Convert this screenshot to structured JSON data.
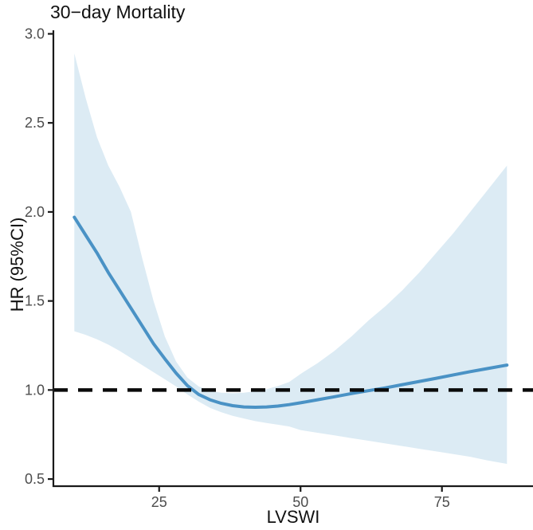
{
  "page": {
    "background": "#ffffff"
  },
  "chart_data": {
    "type": "line",
    "title": "30−day Mortality",
    "xlabel": "LVSWI",
    "ylabel": "HR (95%CI)",
    "grid": false,
    "legend": false,
    "xlim": [
      6.3,
      91.1
    ],
    "ylim": [
      0.46,
      3.02
    ],
    "x_ticks": {
      "values": [
        25,
        50,
        75
      ],
      "labels": [
        "25",
        "50",
        "75"
      ]
    },
    "y_ticks": {
      "values": [
        0.5,
        1.0,
        1.5,
        2.0,
        2.5,
        3.0
      ],
      "labels": [
        "0.5",
        "1.0",
        "1.5",
        "2.0",
        "2.5",
        "3.0"
      ]
    },
    "reference_line": {
      "y": 1.0,
      "style": "dashed",
      "color": "#0a0a0a"
    },
    "x": [
      10,
      12,
      14,
      16,
      18,
      20,
      22,
      24,
      26,
      28,
      30,
      32,
      34,
      36,
      38,
      40,
      42,
      44,
      46,
      48,
      50,
      53,
      56,
      59,
      62,
      65,
      68,
      71,
      74,
      77,
      80,
      83,
      86.5
    ],
    "series": [
      {
        "name": "HR",
        "role": "estimate",
        "color": "#4a92c5",
        "values": [
          1.97,
          1.87,
          1.77,
          1.66,
          1.56,
          1.46,
          1.36,
          1.26,
          1.175,
          1.095,
          1.025,
          0.975,
          0.945,
          0.925,
          0.912,
          0.905,
          0.903,
          0.905,
          0.91,
          0.918,
          0.928,
          0.945,
          0.962,
          0.98,
          0.996,
          1.012,
          1.03,
          1.048,
          1.066,
          1.085,
          1.103,
          1.12,
          1.14
        ]
      },
      {
        "name": "upper 95% CI",
        "role": "ci-upper",
        "color": "#dcebf4",
        "values": [
          2.89,
          2.64,
          2.42,
          2.26,
          2.14,
          2.0,
          1.74,
          1.5,
          1.3,
          1.16,
          1.07,
          1.02,
          0.995,
          0.985,
          0.982,
          0.985,
          0.993,
          1.005,
          1.022,
          1.045,
          1.09,
          1.15,
          1.22,
          1.3,
          1.39,
          1.47,
          1.56,
          1.66,
          1.77,
          1.88,
          2.0,
          2.12,
          2.26
        ]
      },
      {
        "name": "lower 95% CI",
        "role": "ci-lower",
        "color": "#dcebf4",
        "values": [
          1.33,
          1.31,
          1.285,
          1.255,
          1.22,
          1.18,
          1.14,
          1.1,
          1.06,
          1.02,
          0.975,
          0.935,
          0.9,
          0.875,
          0.855,
          0.84,
          0.825,
          0.815,
          0.805,
          0.795,
          0.775,
          0.76,
          0.745,
          0.73,
          0.715,
          0.7,
          0.685,
          0.67,
          0.655,
          0.64,
          0.625,
          0.605,
          0.585
        ]
      }
    ]
  },
  "style": {
    "line_color": "#4a92c5",
    "band_color": "#dcebf4",
    "axis_color": "#1a1a1a",
    "tick_label_color": "#4d4d4d",
    "dash_color": "#0a0a0a"
  }
}
